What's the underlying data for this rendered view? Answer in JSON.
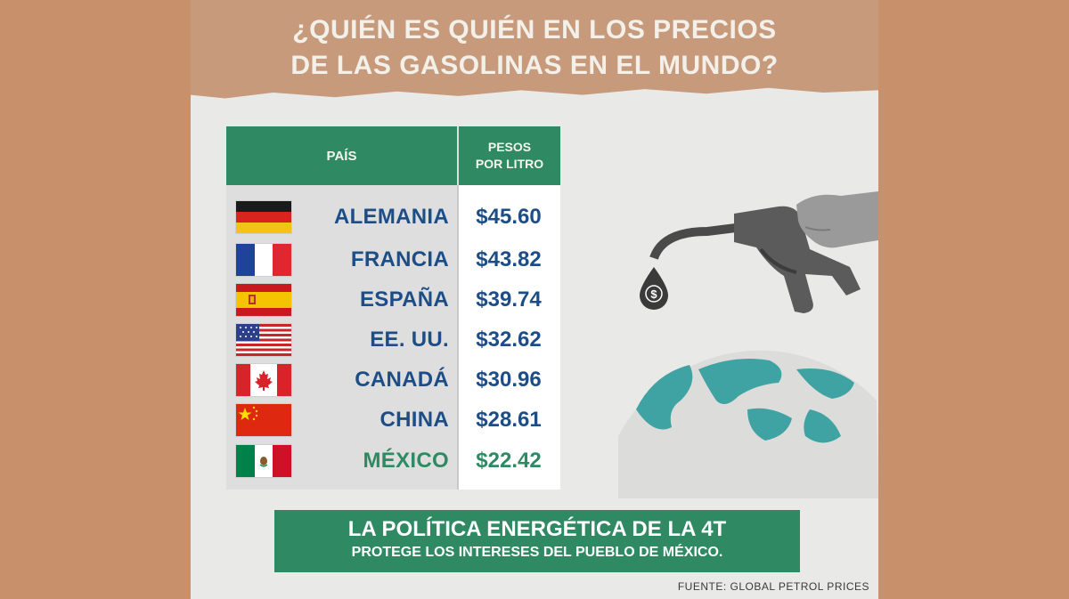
{
  "title": {
    "line1": "¿QUIÉN ES QUIÉN EN LOS PRECIOS",
    "line2": "DE LAS GASOLINAS EN EL MUNDO?"
  },
  "table": {
    "header_country": "PAÍS",
    "header_price_line1": "PESOS",
    "header_price_line2": "POR LITRO",
    "rows": [
      {
        "country": "ALEMANIA",
        "price": "$45.60",
        "flag": "germany-flag-icon"
      },
      {
        "country": "FRANCIA",
        "price": "$43.82",
        "flag": "france-flag-icon"
      },
      {
        "country": "ESPAÑA",
        "price": "$39.74",
        "flag": "spain-flag-icon"
      },
      {
        "country": "EE. UU.",
        "price": "$32.62",
        "flag": "usa-flag-icon"
      },
      {
        "country": "CANADÁ",
        "price": "$30.96",
        "flag": "canada-flag-icon"
      },
      {
        "country": "CHINA",
        "price": "$28.61",
        "flag": "china-flag-icon"
      },
      {
        "country": "MÉXICO",
        "price": "$22.42",
        "flag": "mexico-flag-icon"
      }
    ]
  },
  "banner": {
    "line1": "LA POLÍTICA ENERGÉTICA DE LA 4T",
    "line2": "PROTEGE LOS INTERESES DEL PUEBLO DE MÉXICO."
  },
  "source": "FUENTE: GLOBAL PETROL PRICES",
  "drop_symbol": "$",
  "colors": {
    "green": "#2f8a63",
    "blue": "#1d4d86",
    "band": "#c79a7c",
    "outer": "#c9906c"
  }
}
